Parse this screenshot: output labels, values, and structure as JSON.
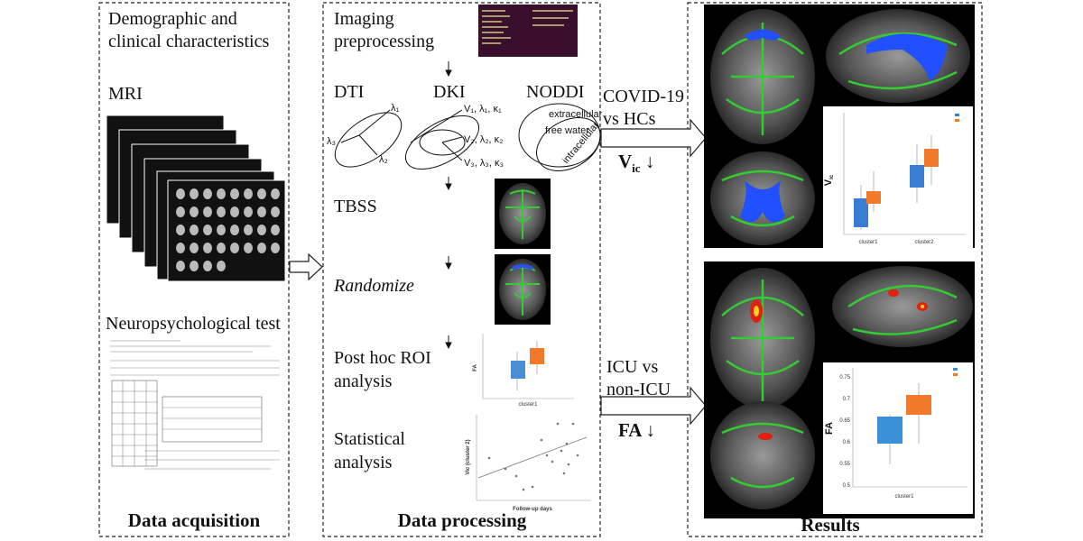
{
  "acquisition": {
    "title": "Data acquisition",
    "demographic": [
      "Demographic and",
      "clinical characteristics"
    ],
    "mri": "MRI",
    "neuro": "Neuropsychological test"
  },
  "processing": {
    "title": "Data processing",
    "preprocessing": [
      "Imaging",
      "preprocessing"
    ],
    "dti": {
      "label": "DTI",
      "axes": [
        "λ₁",
        "λ₂",
        "λ₃"
      ]
    },
    "dki": {
      "label": "DKI",
      "axes": [
        "V₁, λ₁, κ₁",
        "V₂, λ₂, κ₂",
        "V₃, λ₃, κ₃"
      ]
    },
    "noddi": {
      "label": "NODDI",
      "compartments": [
        "extracellular",
        "free water",
        "intracellular"
      ]
    },
    "tbss": "TBSS",
    "randomize": "Randomize",
    "posthoc": {
      "lines": [
        "Post hoc ROI",
        "analysis"
      ],
      "y_label": "FA",
      "x_label": "cluster1"
    },
    "statistical": {
      "lines": [
        "Statistical",
        "analysis"
      ],
      "y_label": "Vic (cluster 2)",
      "x_label": "Follow-up days"
    }
  },
  "comparisons": [
    {
      "lines": [
        "COVID-19",
        "vs HCs"
      ],
      "finding": {
        "text": "V",
        "sub": "ic",
        "after": " ↓"
      }
    },
    {
      "lines": [
        "ICU vs",
        "non-ICU"
      ],
      "finding": {
        "text": "FA",
        "after": " ↓"
      }
    }
  ],
  "results": {
    "title": "Results",
    "chart1": {
      "y_label": {
        "text": "V",
        "sub": "ic"
      },
      "categories": [
        "cluster1",
        "cluster2"
      ]
    },
    "chart2": {
      "y_label": "FA",
      "yticks": [
        "0.75",
        "0.7",
        "0.65",
        "0.6",
        "0.55",
        "0.5"
      ],
      "categories": [
        "cluster1"
      ]
    }
  }
}
